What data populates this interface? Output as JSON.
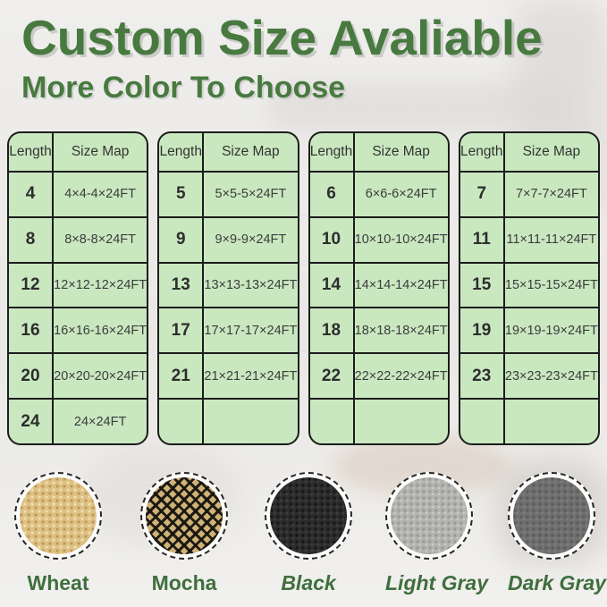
{
  "page": {
    "title": "Custom Size Avaliable",
    "subtitle": "More Color To Choose"
  },
  "colors": {
    "accent_green": "#487a40",
    "table_background": "#c9e8c0",
    "table_border": "#1c1c1c",
    "label_green": "#3f6f3e"
  },
  "tables": [
    {
      "headers": {
        "length": "Length",
        "size": "Size Map"
      },
      "rows": [
        {
          "length": "4",
          "size": "4×4-4×24FT"
        },
        {
          "length": "8",
          "size": "8×8-8×24FT"
        },
        {
          "length": "12",
          "size": "12×12-12×24FT"
        },
        {
          "length": "16",
          "size": "16×16-16×24FT"
        },
        {
          "length": "20",
          "size": "20×20-20×24FT"
        },
        {
          "length": "24",
          "size": "24×24FT"
        }
      ]
    },
    {
      "headers": {
        "length": "Length",
        "size": "Size Map"
      },
      "rows": [
        {
          "length": "5",
          "size": "5×5-5×24FT"
        },
        {
          "length": "9",
          "size": "9×9-9×24FT"
        },
        {
          "length": "13",
          "size": "13×13-13×24FT"
        },
        {
          "length": "17",
          "size": "17×17-17×24FT"
        },
        {
          "length": "21",
          "size": "21×21-21×24FT"
        },
        {
          "length": "",
          "size": ""
        }
      ]
    },
    {
      "headers": {
        "length": "Length",
        "size": "Size Map"
      },
      "rows": [
        {
          "length": "6",
          "size": "6×6-6×24FT"
        },
        {
          "length": "10",
          "size": "10×10-10×24FT"
        },
        {
          "length": "14",
          "size": "14×14-14×24FT"
        },
        {
          "length": "18",
          "size": "18×18-18×24FT"
        },
        {
          "length": "22",
          "size": "22×22-22×24FT"
        },
        {
          "length": "",
          "size": ""
        }
      ]
    },
    {
      "headers": {
        "length": "Length",
        "size": "Size Map"
      },
      "rows": [
        {
          "length": "7",
          "size": "7×7-7×24FT"
        },
        {
          "length": "11",
          "size": "11×11-11×24FT"
        },
        {
          "length": "15",
          "size": "15×15-15×24FT"
        },
        {
          "length": "19",
          "size": "19×19-19×24FT"
        },
        {
          "length": "23",
          "size": "23×23-23×24FT"
        },
        {
          "length": "",
          "size": ""
        }
      ]
    }
  ],
  "swatches": [
    {
      "name": "Wheat",
      "color": "#ddc084"
    },
    {
      "name": "Mocha",
      "color": "#cfb276"
    },
    {
      "name": "Black",
      "color": "#2c2c2c"
    },
    {
      "name": "Light Gray",
      "color": "#b3b3b1"
    },
    {
      "name": "Dark Gray",
      "color": "#6f6f6f"
    }
  ]
}
